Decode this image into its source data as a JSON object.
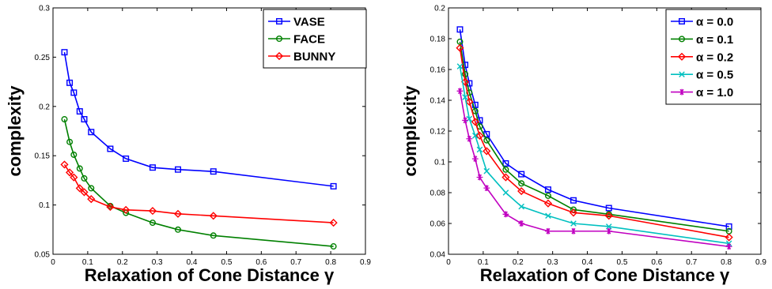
{
  "chart_data": [
    {
      "type": "line",
      "xlabel": "Relaxation of Cone Distance γ",
      "ylabel": "complexity",
      "xlim": [
        0,
        0.9
      ],
      "ylim": [
        0.05,
        0.3
      ],
      "xticks": [
        0,
        0.1,
        0.2,
        0.3,
        0.4,
        0.5,
        0.6,
        0.7,
        0.8,
        0.9
      ],
      "yticks": [
        0.05,
        0.1,
        0.15,
        0.2,
        0.25,
        0.3
      ],
      "xtick_labels": [
        "0",
        "0.1",
        "0.2",
        "0.3",
        "0.4",
        "0.5",
        "0.6",
        "0.7",
        "0.8",
        "0.9"
      ],
      "ytick_labels": [
        "0.05",
        "0.1",
        "0.15",
        "0.2",
        "0.25",
        "0.3"
      ],
      "grid": false,
      "legend_position": "top-right",
      "x": [
        0.033,
        0.048,
        0.06,
        0.077,
        0.09,
        0.11,
        0.165,
        0.21,
        0.287,
        0.36,
        0.462,
        0.808
      ],
      "series": [
        {
          "name": "VASE",
          "color": "#0000ff",
          "marker": "square",
          "values": [
            0.255,
            0.224,
            0.214,
            0.195,
            0.187,
            0.174,
            0.157,
            0.147,
            0.138,
            0.136,
            0.134,
            0.119
          ]
        },
        {
          "name": "FACE",
          "color": "#008000",
          "marker": "circle",
          "values": [
            0.187,
            0.164,
            0.151,
            0.137,
            0.127,
            0.117,
            0.099,
            0.092,
            0.082,
            0.075,
            0.069,
            0.058
          ]
        },
        {
          "name": "BUNNY",
          "color": "#ff0000",
          "marker": "diamond",
          "values": [
            0.141,
            0.133,
            0.128,
            0.117,
            0.113,
            0.106,
            0.098,
            0.095,
            0.094,
            0.091,
            0.089,
            0.082
          ]
        }
      ]
    },
    {
      "type": "line",
      "xlabel": "Relaxation of Cone Distance γ",
      "ylabel": "complexity",
      "xlim": [
        0,
        0.9
      ],
      "ylim": [
        0.04,
        0.2
      ],
      "xticks": [
        0,
        0.1,
        0.2,
        0.3,
        0.4,
        0.5,
        0.6,
        0.7,
        0.8,
        0.9
      ],
      "yticks": [
        0.04,
        0.06,
        0.08,
        0.1,
        0.12,
        0.14,
        0.16,
        0.18,
        0.2
      ],
      "xtick_labels": [
        "0",
        "0.1",
        "0.2",
        "0.3",
        "0.4",
        "0.5",
        "0.6",
        "0.7",
        "0.8",
        "0.9"
      ],
      "ytick_labels": [
        "0.04",
        "0.06",
        "0.08",
        "0.1",
        "0.12",
        "0.14",
        "0.16",
        "0.18",
        "0.2"
      ],
      "grid": false,
      "legend_position": "top-right",
      "x": [
        0.033,
        0.048,
        0.06,
        0.077,
        0.09,
        0.11,
        0.165,
        0.21,
        0.287,
        0.36,
        0.462,
        0.808
      ],
      "series": [
        {
          "name": "α = 0.0",
          "color": "#0000ff",
          "marker": "square",
          "values": [
            0.186,
            0.163,
            0.151,
            0.137,
            0.127,
            0.118,
            0.099,
            0.092,
            0.082,
            0.075,
            0.07,
            0.058
          ]
        },
        {
          "name": "α = 0.1",
          "color": "#008000",
          "marker": "circle",
          "values": [
            0.178,
            0.157,
            0.145,
            0.133,
            0.123,
            0.114,
            0.095,
            0.086,
            0.078,
            0.069,
            0.066,
            0.055
          ]
        },
        {
          "name": "α = 0.2",
          "color": "#ff0000",
          "marker": "diamond",
          "values": [
            0.174,
            0.152,
            0.139,
            0.126,
            0.117,
            0.107,
            0.09,
            0.081,
            0.073,
            0.067,
            0.065,
            0.051
          ]
        },
        {
          "name": "α = 0.5",
          "color": "#00c0c0",
          "marker": "x",
          "values": [
            0.162,
            0.142,
            0.128,
            0.117,
            0.108,
            0.094,
            0.08,
            0.071,
            0.065,
            0.06,
            0.058,
            0.047
          ]
        },
        {
          "name": "α = 1.0",
          "color": "#c000c0",
          "marker": "star",
          "values": [
            0.146,
            0.127,
            0.115,
            0.102,
            0.09,
            0.083,
            0.066,
            0.06,
            0.055,
            0.055,
            0.055,
            0.045
          ]
        }
      ]
    }
  ]
}
